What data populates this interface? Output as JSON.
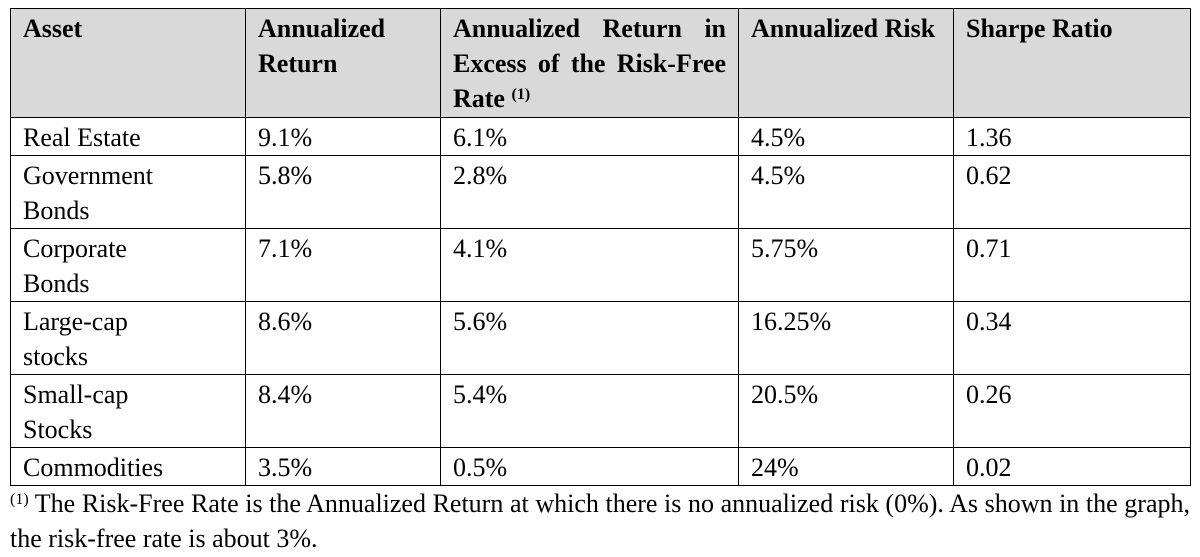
{
  "table": {
    "header": [
      "Asset",
      "Annualized Return",
      "Annualized Return in Excess of the Risk-Free Rate",
      "Annualized Risk",
      "Sharpe Ratio"
    ],
    "header_note": "(1)",
    "rows": [
      [
        "Real Estate",
        "9.1%",
        "6.1%",
        "4.5%",
        "1.36"
      ],
      [
        "Government Bonds",
        "5.8%",
        "2.8%",
        "4.5%",
        "0.62"
      ],
      [
        "Corporate Bonds",
        "7.1%",
        "4.1%",
        "5.75%",
        "0.71"
      ],
      [
        "Large-cap stocks",
        "8.6%",
        "5.6%",
        "16.25%",
        "0.34"
      ],
      [
        "Small-cap Stocks",
        "8.4%",
        "5.4%",
        "20.5%",
        "0.26"
      ],
      [
        "Commodities",
        "3.5%",
        "0.5%",
        "24%",
        "0.02"
      ]
    ]
  },
  "footnote": {
    "marker": "(1)",
    "text": "The Risk-Free Rate is the Annualized Return at which there is no annualized risk (0%).  As shown in the graph, the risk-free rate is about 3%."
  }
}
